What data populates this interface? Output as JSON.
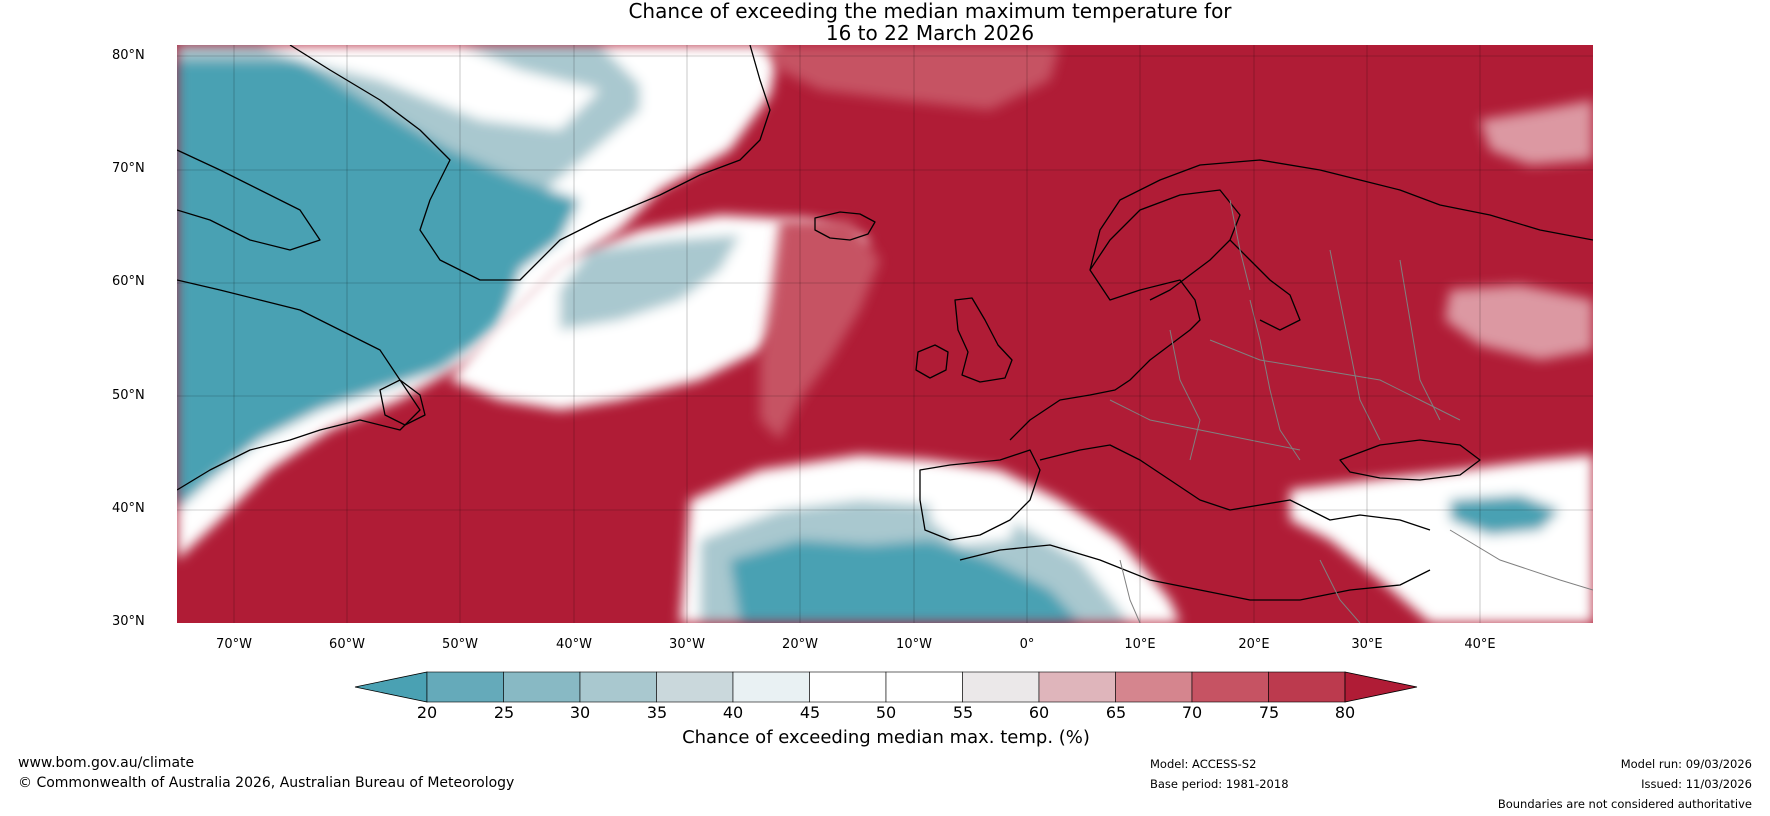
{
  "title": {
    "line1": "Chance of exceeding the median maximum temperature for",
    "line2": "16 to 22 March 2026"
  },
  "map": {
    "lat_labels": [
      "80°N",
      "70°N",
      "60°N",
      "50°N",
      "40°N",
      "30°N"
    ],
    "lon_labels": [
      "70°W",
      "60°W",
      "50°W",
      "40°W",
      "30°W",
      "20°W",
      "10°W",
      "0°",
      "10°E",
      "20°E",
      "30°E",
      "40°E"
    ],
    "lat_range": [
      30,
      81
    ],
    "lon_range": [
      -75,
      50
    ],
    "colors": {
      "very_high": "#b01c36",
      "high": "#c65363",
      "mid_high": "#dc98a2",
      "neutral": "#ffffff",
      "mid_low": "#a9c8cf",
      "low": "#4aa1b3",
      "coast": "#000000",
      "border": "#808080"
    }
  },
  "colorbar": {
    "ticks": [
      "20",
      "25",
      "30",
      "35",
      "40",
      "45",
      "50",
      "55",
      "60",
      "65",
      "70",
      "75",
      "80"
    ],
    "colors": [
      "#4aa1b3",
      "#65aaba",
      "#88b9c4",
      "#a9c8cf",
      "#cad8dc",
      "#e9f1f3",
      "#ffffff",
      "#ffffff",
      "#ebe8e9",
      "#dfb5bb",
      "#d5858e",
      "#c65363",
      "#bc3a4e",
      "#b01c36"
    ],
    "label": "Chance of exceeding median max. temp. (%)"
  },
  "footer": {
    "website": "www.bom.gov.au/climate",
    "copyright": "© Commonwealth of Australia 2026, Australian Bureau of Meteorology",
    "model": "Model: ACCESS-S2",
    "base_period": "Base period: 1981-2018",
    "model_run": "Model run: 09/03/2026",
    "issued": "Issued: 11/03/2026",
    "disclaimer": "Boundaries are not considered authoritative"
  }
}
